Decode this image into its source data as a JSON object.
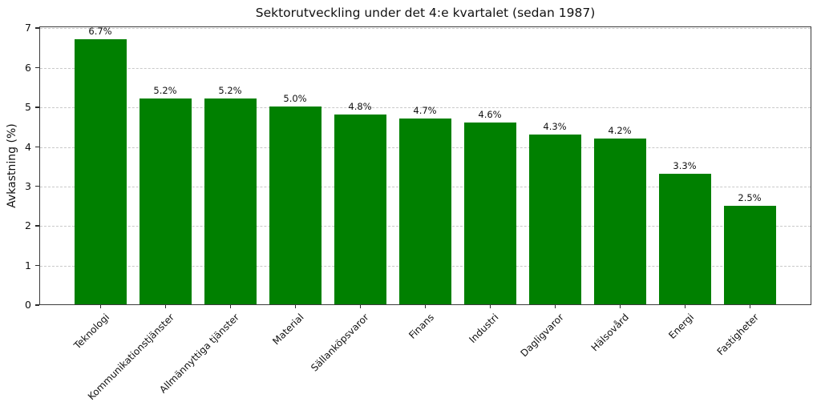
{
  "chart_data": {
    "type": "bar",
    "title": "Sektorutveckling under det 4:e kvartalet (sedan 1987)",
    "xlabel": "",
    "ylabel": "Avkastning (%)",
    "categories": [
      "Teknologi",
      "Kommunikationstjänster",
      "Allmännyttiga tjänster",
      "Material",
      "Sällanköpsvaror",
      "Finans",
      "Industri",
      "Dagligvaror",
      "Hälsovård",
      "Energi",
      "Fastigheter"
    ],
    "values": [
      6.7,
      5.2,
      5.2,
      5.0,
      4.8,
      4.7,
      4.6,
      4.3,
      4.2,
      3.3,
      2.5
    ],
    "value_labels": [
      "6.7%",
      "5.2%",
      "5.2%",
      "5.0%",
      "4.8%",
      "4.7%",
      "4.6%",
      "4.3%",
      "4.2%",
      "3.3%",
      "2.5%"
    ],
    "yticks": [
      0,
      1,
      2,
      3,
      4,
      5,
      6,
      7
    ],
    "ylim": [
      0,
      7.05
    ],
    "grid": "horizontal-dashed",
    "legend_position": "none",
    "colors": {
      "bar": "#008000",
      "grid": "#c9c9c9",
      "frame": "#3c3c3c",
      "text": "#111111",
      "background": "#ffffff"
    }
  }
}
